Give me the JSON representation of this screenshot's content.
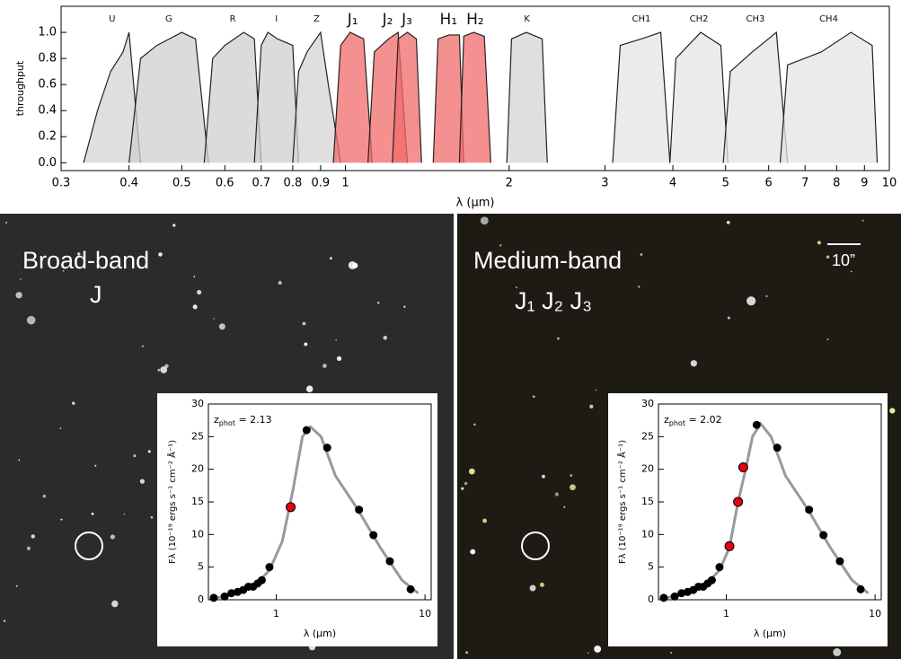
{
  "chart_data": [
    {
      "type": "filters",
      "xlabel": "λ (μm)",
      "ylabel": "throughput",
      "log_x": true,
      "xlim": [
        0.3,
        10
      ],
      "ylim": [
        -0.06,
        1.2
      ],
      "xticks": [
        0.3,
        0.4,
        0.5,
        0.6,
        0.7,
        0.8,
        0.9,
        1,
        2,
        3,
        4,
        5,
        6,
        7,
        8,
        9,
        10
      ],
      "yticks": [
        {
          "value": 0,
          "label": "0.0"
        },
        0.2,
        0.4,
        0.6,
        0.8,
        {
          "value": 1,
          "label": "1.0"
        }
      ],
      "series": [
        {
          "name": "U",
          "color": "#d4d4d4",
          "x": [
            0.33,
            0.35,
            0.37,
            0.39,
            0.4,
            0.42
          ],
          "values": [
            0,
            0.4,
            0.7,
            0.85,
            1.0,
            0
          ]
        },
        {
          "name": "G",
          "color": "#cfcfcf",
          "x": [
            0.4,
            0.42,
            0.45,
            0.5,
            0.53,
            0.56
          ],
          "values": [
            0,
            0.8,
            0.9,
            1.0,
            0.95,
            0
          ]
        },
        {
          "name": "R",
          "color": "#cfcfcf",
          "x": [
            0.55,
            0.57,
            0.6,
            0.65,
            0.68,
            0.7
          ],
          "values": [
            0,
            0.8,
            0.9,
            1.0,
            0.95,
            0
          ]
        },
        {
          "name": "I",
          "color": "#cfcfcf",
          "x": [
            0.68,
            0.7,
            0.72,
            0.75,
            0.8,
            0.82
          ],
          "values": [
            0,
            0.9,
            1.0,
            0.95,
            0.9,
            0
          ]
        },
        {
          "name": "Z",
          "color": "#d4d4d4",
          "x": [
            0.8,
            0.82,
            0.85,
            0.9,
            0.93,
            0.98
          ],
          "values": [
            0,
            0.7,
            0.85,
            1.0,
            0.6,
            0
          ]
        },
        {
          "name": "J₁",
          "color": "#f26b6b",
          "x": [
            0.95,
            0.98,
            1.02,
            1.08,
            1.12
          ],
          "values": [
            0,
            0.9,
            1.0,
            0.95,
            0
          ]
        },
        {
          "name": "J₂",
          "color": "#f26b6b",
          "x": [
            1.1,
            1.13,
            1.2,
            1.25,
            1.3
          ],
          "values": [
            0,
            0.85,
            0.95,
            1.0,
            0
          ]
        },
        {
          "name": "J₃",
          "color": "#f26b6b",
          "x": [
            1.22,
            1.25,
            1.3,
            1.35,
            1.38
          ],
          "values": [
            0,
            0.95,
            1.0,
            0.95,
            0
          ]
        },
        {
          "name": "H₁",
          "color": "#f26b6b",
          "x": [
            1.45,
            1.48,
            1.55,
            1.62,
            1.65
          ],
          "values": [
            0,
            0.95,
            0.98,
            0.98,
            0
          ]
        },
        {
          "name": "H₂",
          "color": "#f26b6b",
          "x": [
            1.62,
            1.65,
            1.72,
            1.8,
            1.85
          ],
          "values": [
            0,
            0.97,
            1.0,
            0.97,
            0
          ]
        },
        {
          "name": "K",
          "color": "#d4d4d4",
          "x": [
            1.98,
            2.02,
            2.15,
            2.3,
            2.35
          ],
          "values": [
            0,
            0.95,
            1.0,
            0.95,
            0
          ]
        },
        {
          "name": "CH1",
          "color": "#e4e4e4",
          "x": [
            3.1,
            3.2,
            3.5,
            3.8,
            3.95
          ],
          "values": [
            0,
            0.9,
            0.95,
            1.0,
            0
          ]
        },
        {
          "name": "CH2",
          "color": "#e4e4e4",
          "x": [
            3.95,
            4.05,
            4.5,
            4.9,
            5.05
          ],
          "values": [
            0,
            0.8,
            1.0,
            0.9,
            0
          ]
        },
        {
          "name": "CH3",
          "color": "#e4e4e4",
          "x": [
            4.95,
            5.1,
            5.6,
            6.2,
            6.5
          ],
          "values": [
            0,
            0.7,
            0.85,
            1.0,
            0
          ]
        },
        {
          "name": "CH4",
          "color": "#e4e4e4",
          "x": [
            6.3,
            6.5,
            7.5,
            8.5,
            9.3,
            9.5
          ],
          "values": [
            0,
            0.75,
            0.85,
            1.0,
            0.9,
            0
          ]
        }
      ]
    },
    {
      "type": "scatter",
      "xlabel": "λ (μm)",
      "ylabel": "Fλ (10⁻¹⁹ ergs s⁻¹ cm⁻² Å⁻¹)",
      "annotation": [
        "z",
        "phot",
        " = 2.13"
      ],
      "log_x": true,
      "xlim": [
        0.35,
        11
      ],
      "ylim": [
        0,
        30
      ],
      "xticks": [
        1,
        10
      ],
      "yticks": [
        0,
        5,
        10,
        15,
        20,
        25,
        30
      ],
      "model": {
        "color": "#999999",
        "x": [
          0.38,
          0.5,
          0.7,
          0.9,
          1.1,
          1.3,
          1.5,
          1.7,
          2.0,
          2.5,
          3.5,
          5,
          7,
          9
        ],
        "values": [
          0.2,
          0.8,
          2,
          4.5,
          9,
          17,
          25,
          26.5,
          25,
          19,
          14,
          8,
          3,
          1
        ]
      },
      "series": [
        {
          "color": "#000000",
          "x": [
            0.38,
            0.45,
            0.5,
            0.55,
            0.6,
            0.65,
            0.7,
            0.75,
            0.8,
            0.9,
            1.6,
            2.2,
            3.6,
            4.5,
            5.8,
            8
          ],
          "values": [
            0.3,
            0.5,
            1,
            1.2,
            1.5,
            2,
            2,
            2.5,
            3,
            5,
            26,
            23.3,
            13.8,
            9.9,
            5.9,
            1.6
          ]
        },
        {
          "color": "#e8000b",
          "x": [
            1.25
          ],
          "values": [
            14.2
          ]
        }
      ]
    },
    {
      "type": "scatter",
      "xlabel": "λ (μm)",
      "ylabel": "Fλ (10⁻¹⁹ ergs s⁻¹ cm⁻² Å⁻¹)",
      "annotation": [
        "z",
        "phot",
        " = 2.02"
      ],
      "log_x": true,
      "xlim": [
        0.35,
        11
      ],
      "ylim": [
        0,
        30
      ],
      "xticks": [
        1,
        10
      ],
      "yticks": [
        0,
        5,
        10,
        15,
        20,
        25,
        30
      ],
      "model": {
        "color": "#999999",
        "x": [
          0.38,
          0.5,
          0.7,
          0.9,
          1.05,
          1.2,
          1.35,
          1.5,
          1.7,
          2.0,
          2.5,
          3.5,
          5,
          7,
          9
        ],
        "values": [
          0.2,
          0.8,
          2,
          4.5,
          8,
          15,
          20,
          25,
          27,
          25,
          19,
          14,
          8,
          3,
          1
        ]
      },
      "series": [
        {
          "color": "#000000",
          "x": [
            0.38,
            0.45,
            0.5,
            0.55,
            0.6,
            0.65,
            0.7,
            0.75,
            0.8,
            0.9,
            1.6,
            2.2,
            3.6,
            4.5,
            5.8,
            8
          ],
          "values": [
            0.3,
            0.5,
            1,
            1.2,
            1.5,
            2,
            2,
            2.5,
            3,
            5,
            26.8,
            23.3,
            13.8,
            9.9,
            5.9,
            1.6
          ]
        },
        {
          "color": "#e8000b",
          "x": [
            1.05,
            1.2,
            1.3
          ],
          "values": [
            8.2,
            15,
            20.3
          ]
        }
      ]
    }
  ],
  "panels": [
    {
      "title": "Broad-band",
      "band": "J"
    },
    {
      "title": "Medium-band",
      "band": "J₁ J₂ J₃",
      "scale": "10”"
    }
  ]
}
